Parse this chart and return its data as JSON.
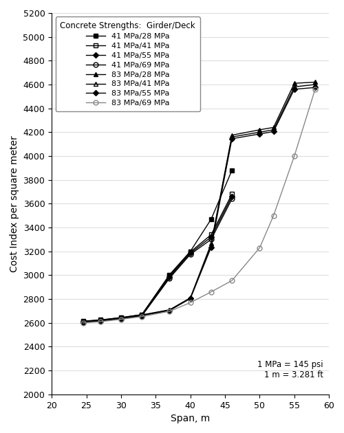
{
  "xlabel": "Span, m",
  "ylabel": "Cost Index per square meter",
  "xlim": [
    20,
    60
  ],
  "ylim": [
    2000,
    5200
  ],
  "xticks": [
    20,
    25,
    30,
    35,
    40,
    45,
    50,
    55,
    60
  ],
  "yticks": [
    2000,
    2200,
    2400,
    2600,
    2800,
    3000,
    3200,
    3400,
    3600,
    3800,
    4000,
    4200,
    4400,
    4600,
    4800,
    5000,
    5200
  ],
  "annotation": "1 MPa = 145 psi\n1 m = 3.281 ft",
  "legend_title": "Concrete Strengths:  Girder/Deck",
  "series": [
    {
      "label": "41 MPa/28 MPa",
      "marker": "s",
      "fillstyle": "full",
      "color": "#000000",
      "linewidth": 1.0,
      "markersize": 5,
      "x": [
        24.5,
        27,
        30,
        33,
        37,
        40,
        43,
        46
      ],
      "y": [
        2615,
        2625,
        2645,
        2670,
        3005,
        3200,
        3470,
        3880
      ]
    },
    {
      "label": "41 MPa/41 MPa",
      "marker": "s",
      "fillstyle": "none",
      "color": "#000000",
      "linewidth": 1.0,
      "markersize": 5,
      "x": [
        24.5,
        27,
        30,
        33,
        37,
        40,
        43,
        46
      ],
      "y": [
        2612,
        2622,
        2642,
        2668,
        2995,
        3195,
        3340,
        3680
      ]
    },
    {
      "label": "41 MPa/55 MPa",
      "marker": "D",
      "fillstyle": "full",
      "color": "#000000",
      "linewidth": 1.0,
      "markersize": 4,
      "x": [
        24.5,
        27,
        30,
        33,
        37,
        40,
        43,
        46
      ],
      "y": [
        2608,
        2618,
        2638,
        2663,
        2985,
        3185,
        3320,
        3660
      ]
    },
    {
      "label": "41 MPa/69 MPa",
      "marker": "o",
      "fillstyle": "none",
      "color": "#000000",
      "linewidth": 1.0,
      "markersize": 5,
      "x": [
        24.5,
        27,
        30,
        33,
        37,
        40,
        43,
        46
      ],
      "y": [
        2605,
        2615,
        2635,
        2658,
        2975,
        3175,
        3300,
        3640
      ]
    },
    {
      "label": "83 MPa/28 MPa",
      "marker": "^",
      "fillstyle": "full",
      "color": "#000000",
      "linewidth": 1.0,
      "markersize": 5,
      "x": [
        24.5,
        27,
        30,
        33,
        37,
        40,
        43,
        46,
        50,
        52,
        55,
        58
      ],
      "y": [
        2613,
        2623,
        2643,
        2667,
        2710,
        2810,
        3265,
        4175,
        4220,
        4240,
        4610,
        4620
      ]
    },
    {
      "label": "83 MPa/41 MPa",
      "marker": "^",
      "fillstyle": "none",
      "color": "#000000",
      "linewidth": 1.0,
      "markersize": 5,
      "x": [
        24.5,
        27,
        30,
        33,
        37,
        40,
        43,
        46,
        50,
        52,
        55,
        58
      ],
      "y": [
        2610,
        2620,
        2640,
        2664,
        2707,
        2807,
        3250,
        4160,
        4200,
        4220,
        4580,
        4600
      ]
    },
    {
      "label": "83 MPa/55 MPa",
      "marker": "D",
      "fillstyle": "full",
      "color": "#000000",
      "linewidth": 1.0,
      "markersize": 4,
      "x": [
        24.5,
        27,
        30,
        33,
        37,
        40,
        43,
        46,
        50,
        52,
        55,
        58
      ],
      "y": [
        2607,
        2617,
        2637,
        2661,
        2704,
        2804,
        3235,
        4145,
        4185,
        4205,
        4560,
        4575
      ]
    },
    {
      "label": "83 MPa/69 MPa",
      "marker": "o",
      "fillstyle": "none",
      "color": "#888888",
      "linewidth": 1.0,
      "markersize": 5,
      "x": [
        24.5,
        27,
        30,
        33,
        37,
        40,
        43,
        46,
        50,
        52,
        55,
        58
      ],
      "y": [
        2600,
        2610,
        2630,
        2653,
        2697,
        2770,
        2860,
        2955,
        3230,
        3500,
        4000,
        4560
      ]
    }
  ]
}
